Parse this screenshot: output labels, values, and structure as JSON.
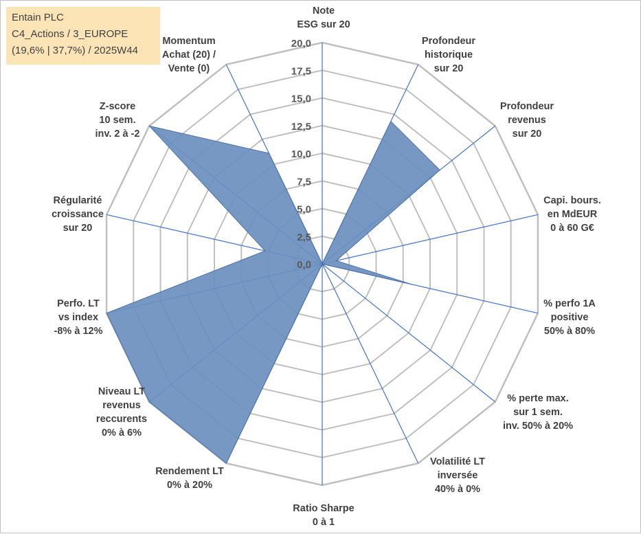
{
  "info": {
    "company": "Entain PLC",
    "category": "C4_Actions / 3_EUROPE",
    "stats": "(19,6% | 37,7%) / 2025W44"
  },
  "colors": {
    "series_fill": "#6a8fbd",
    "series_stroke": "#4a72a8",
    "grid": "#bfbfbf",
    "spoke": "#4472c4",
    "info_bg": "#fce4b6"
  },
  "chart_data": {
    "type": "radar",
    "title": "",
    "rmin": 0,
    "rmax": 20,
    "tick_step": 2.5,
    "tick_labels": [
      "0,0",
      "2,5",
      "5,0",
      "7,5",
      "10,0",
      "12,5",
      "15,0",
      "17,5",
      "20,0"
    ],
    "axes": [
      {
        "label": [
          "Note",
          "ESG sur 20"
        ],
        "value": 0
      },
      {
        "label": [
          "Profondeur",
          "historique",
          "sur 20"
        ],
        "value": 14.3
      },
      {
        "label": [
          "Profondeur",
          "revenus",
          "sur 20"
        ],
        "value": 13.6
      },
      {
        "label": [
          "Capi. bours.",
          "en MdEUR",
          "0 à 60 G€"
        ],
        "value": 1.3
      },
      {
        "label": [
          "% perfo 1A",
          "positive",
          "50% à 80%"
        ],
        "value": 8.3
      },
      {
        "label": [
          "% perte max.",
          "sur 1 sem.",
          "inv. 50% à 20%"
        ],
        "value": 0
      },
      {
        "label": [
          "Volatilité LT",
          "inversée",
          "40% à 0%"
        ],
        "value": 0
      },
      {
        "label": [
          "Ratio Sharpe",
          "0 à 1"
        ],
        "value": 0
      },
      {
        "label": [
          "Rendement LT",
          "0% à 20%"
        ],
        "value": 20
      },
      {
        "label": [
          "Niveau LT",
          "revenus",
          "reccurents",
          "0% à 6%"
        ],
        "value": 20
      },
      {
        "label": [
          "Perfo. LT",
          "vs index",
          "-8% à 12%"
        ],
        "value": 20
      },
      {
        "label": [
          "Régularité",
          "croissance",
          "sur 20"
        ],
        "value": 5.3
      },
      {
        "label": [
          "Z-score",
          "10 sem.",
          "inv. 2 à -2"
        ],
        "value": 20
      },
      {
        "label": [
          "Momentum",
          "Achat (20) /",
          "Vente (0)"
        ],
        "value": 11.1
      }
    ],
    "series": [
      {
        "name": "Entain PLC",
        "values": [
          0,
          14.3,
          13.6,
          1.3,
          8.3,
          0,
          0,
          0,
          20,
          20,
          20,
          5.3,
          20,
          11.1
        ]
      }
    ]
  }
}
